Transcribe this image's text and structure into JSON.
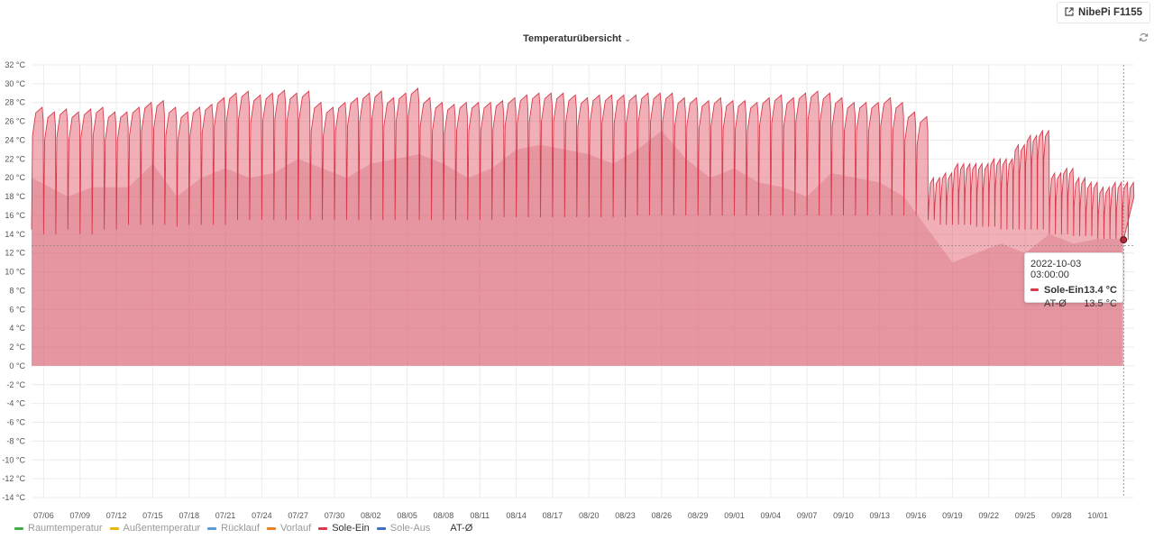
{
  "header": {
    "link_label": "NibePi F1155",
    "link_icon": "external-link-icon",
    "refresh_icon": "refresh-icon"
  },
  "chart_data": {
    "type": "area",
    "title": "Temperaturübersicht",
    "ylim": [
      -14,
      32
    ],
    "yticks": [
      32,
      30,
      28,
      26,
      24,
      22,
      20,
      18,
      16,
      14,
      12,
      10,
      8,
      6,
      4,
      2,
      0,
      -2,
      -4,
      -6,
      -8,
      -10,
      -12,
      -14
    ],
    "ytick_unit": "°C",
    "x_start": "2022-07-05",
    "x_end": "2022-10-04",
    "xtick_labels": [
      "07/06",
      "07/09",
      "07/12",
      "07/15",
      "07/18",
      "07/21",
      "07/24",
      "07/27",
      "07/30",
      "08/02",
      "08/05",
      "08/08",
      "08/11",
      "08/14",
      "08/17",
      "08/20",
      "08/23",
      "08/26",
      "08/29",
      "09/01",
      "09/04",
      "09/07",
      "09/10",
      "09/13",
      "09/16",
      "09/19",
      "09/22",
      "09/25",
      "09/28",
      "10/01"
    ],
    "grid": true,
    "legend_position": "bottom-left",
    "legend": [
      {
        "name": "Raumtemperatur",
        "color": "#3fae49",
        "active": false
      },
      {
        "name": "Außentemperatur",
        "color": "#e6b800",
        "active": false
      },
      {
        "name": "Rücklauf",
        "color": "#5b9bd5",
        "active": false
      },
      {
        "name": "Vorlauf",
        "color": "#ef7d22",
        "active": false
      },
      {
        "name": "Sole-Ein",
        "color": "#d73a4a",
        "active": true
      },
      {
        "name": "Sole-Aus",
        "color": "#3d6fc2",
        "active": false
      },
      {
        "name": "AT-Ø",
        "color": "",
        "active": true
      }
    ],
    "series": [
      {
        "name": "Sole-Ein",
        "color": "#d73a4a",
        "dates": [
          "2022-07-05",
          "2022-07-06",
          "2022-07-07",
          "2022-07-08",
          "2022-07-09",
          "2022-07-10",
          "2022-07-11",
          "2022-07-12",
          "2022-07-13",
          "2022-07-14",
          "2022-07-15",
          "2022-07-16",
          "2022-07-17",
          "2022-07-18",
          "2022-07-19",
          "2022-07-20",
          "2022-07-21",
          "2022-07-22",
          "2022-07-23",
          "2022-07-24",
          "2022-07-25",
          "2022-07-26",
          "2022-07-27",
          "2022-07-28",
          "2022-07-29",
          "2022-07-30",
          "2022-07-31",
          "2022-08-01",
          "2022-08-02",
          "2022-08-03",
          "2022-08-04",
          "2022-08-05",
          "2022-08-06",
          "2022-08-07",
          "2022-08-08",
          "2022-08-09",
          "2022-08-10",
          "2022-08-11",
          "2022-08-12",
          "2022-08-13",
          "2022-08-14",
          "2022-08-15",
          "2022-08-16",
          "2022-08-17",
          "2022-08-18",
          "2022-08-19",
          "2022-08-20",
          "2022-08-21",
          "2022-08-22",
          "2022-08-23",
          "2022-08-24",
          "2022-08-25",
          "2022-08-26",
          "2022-08-27",
          "2022-08-28",
          "2022-08-29",
          "2022-08-30",
          "2022-08-31",
          "2022-09-01",
          "2022-09-02",
          "2022-09-03",
          "2022-09-04",
          "2022-09-05",
          "2022-09-06",
          "2022-09-07",
          "2022-09-08",
          "2022-09-09",
          "2022-09-10",
          "2022-09-11",
          "2022-09-12",
          "2022-09-13",
          "2022-09-14",
          "2022-09-15",
          "2022-09-16",
          "2022-09-17",
          "2022-09-18",
          "2022-09-19",
          "2022-09-20",
          "2022-09-21",
          "2022-09-22",
          "2022-09-23",
          "2022-09-24",
          "2022-09-25",
          "2022-09-26",
          "2022-09-27",
          "2022-09-28",
          "2022-09-29",
          "2022-09-30",
          "2022-10-01",
          "2022-10-02",
          "2022-10-03"
        ],
        "daily_max": [
          27.5,
          27.0,
          27.3,
          27.0,
          27.3,
          27.5,
          27.0,
          27.0,
          27.5,
          28.0,
          28.2,
          27.5,
          27.0,
          27.5,
          27.8,
          28.5,
          29.0,
          29.2,
          28.8,
          29.0,
          29.3,
          29.0,
          29.2,
          28.0,
          27.5,
          28.0,
          28.5,
          29.0,
          29.2,
          28.5,
          29.0,
          29.5,
          28.5,
          28.0,
          27.8,
          28.0,
          28.0,
          28.0,
          28.2,
          28.5,
          28.8,
          29.0,
          29.0,
          29.0,
          28.8,
          28.5,
          28.8,
          28.8,
          28.8,
          28.8,
          29.0,
          29.0,
          29.0,
          28.5,
          28.5,
          28.2,
          28.5,
          28.2,
          28.2,
          28.0,
          28.5,
          28.8,
          28.5,
          29.0,
          29.2,
          29.0,
          28.5,
          28.0,
          28.0,
          28.0,
          28.5,
          28.0,
          27.0,
          26.5,
          20.0,
          20.5,
          21.5,
          21.5,
          21.5,
          22.0,
          22.0,
          23.5,
          24.5,
          25.0,
          20.5,
          21.0,
          20.0,
          19.5,
          19.0,
          19.5,
          19.5
        ],
        "daily_min": [
          14.5,
          14.0,
          14.0,
          14.5,
          14.0,
          14.0,
          14.5,
          14.5,
          15.0,
          15.0,
          15.0,
          15.0,
          14.8,
          15.0,
          15.0,
          15.0,
          15.0,
          15.5,
          15.5,
          15.5,
          15.5,
          15.5,
          15.5,
          15.5,
          15.5,
          15.5,
          15.5,
          15.5,
          15.5,
          15.5,
          15.5,
          15.5,
          15.5,
          15.5,
          15.5,
          15.5,
          15.5,
          15.5,
          15.5,
          15.8,
          15.8,
          15.8,
          15.8,
          15.8,
          15.8,
          15.8,
          15.8,
          15.8,
          15.8,
          15.8,
          16.0,
          16.0,
          16.0,
          16.0,
          16.0,
          16.0,
          16.0,
          16.0,
          16.0,
          16.0,
          16.0,
          16.0,
          16.0,
          16.0,
          16.0,
          16.0,
          16.0,
          16.0,
          16.0,
          16.0,
          16.0,
          16.0,
          16.0,
          16.0,
          15.5,
          15.0,
          15.0,
          15.0,
          14.8,
          14.8,
          14.5,
          14.5,
          14.5,
          14.5,
          14.0,
          14.0,
          13.8,
          13.8,
          13.5,
          13.5,
          13.4
        ]
      },
      {
        "name": "AT-Ø",
        "dates": [
          "2022-07-05",
          "2022-07-08",
          "2022-07-10",
          "2022-07-13",
          "2022-07-15",
          "2022-07-17",
          "2022-07-19",
          "2022-07-21",
          "2022-07-23",
          "2022-07-25",
          "2022-07-27",
          "2022-07-29",
          "2022-07-31",
          "2022-08-02",
          "2022-08-04",
          "2022-08-06",
          "2022-08-08",
          "2022-08-10",
          "2022-08-12",
          "2022-08-14",
          "2022-08-16",
          "2022-08-18",
          "2022-08-20",
          "2022-08-22",
          "2022-08-24",
          "2022-08-26",
          "2022-08-28",
          "2022-08-30",
          "2022-09-01",
          "2022-09-03",
          "2022-09-05",
          "2022-09-07",
          "2022-09-09",
          "2022-09-11",
          "2022-09-13",
          "2022-09-15",
          "2022-09-17",
          "2022-09-19",
          "2022-09-21",
          "2022-09-23",
          "2022-09-25",
          "2022-09-27",
          "2022-09-29",
          "2022-10-01",
          "2022-10-03"
        ],
        "values": [
          20.0,
          18.0,
          19.0,
          19.0,
          21.5,
          18.0,
          20.0,
          21.0,
          20.0,
          20.5,
          22.0,
          21.0,
          20.0,
          21.5,
          22.0,
          22.5,
          21.5,
          20.0,
          21.0,
          23.0,
          23.5,
          23.0,
          22.5,
          21.5,
          23.0,
          25.0,
          22.0,
          20.0,
          21.0,
          19.5,
          19.0,
          18.0,
          20.5,
          20.0,
          19.5,
          18.0,
          14.5,
          11.0,
          12.0,
          13.0,
          12.0,
          14.0,
          13.0,
          13.5,
          13.5
        ]
      }
    ],
    "reference_line": 12.8
  },
  "tooltip": {
    "time": "2022-10-03 03:00:00",
    "rows": [
      {
        "name": "Sole-Ein",
        "value": "13.4 °C",
        "color": "#d73a4a",
        "bold": true
      },
      {
        "name": "AT-Ø",
        "value": "13.5 °C",
        "color": "",
        "bold": false
      }
    ]
  }
}
